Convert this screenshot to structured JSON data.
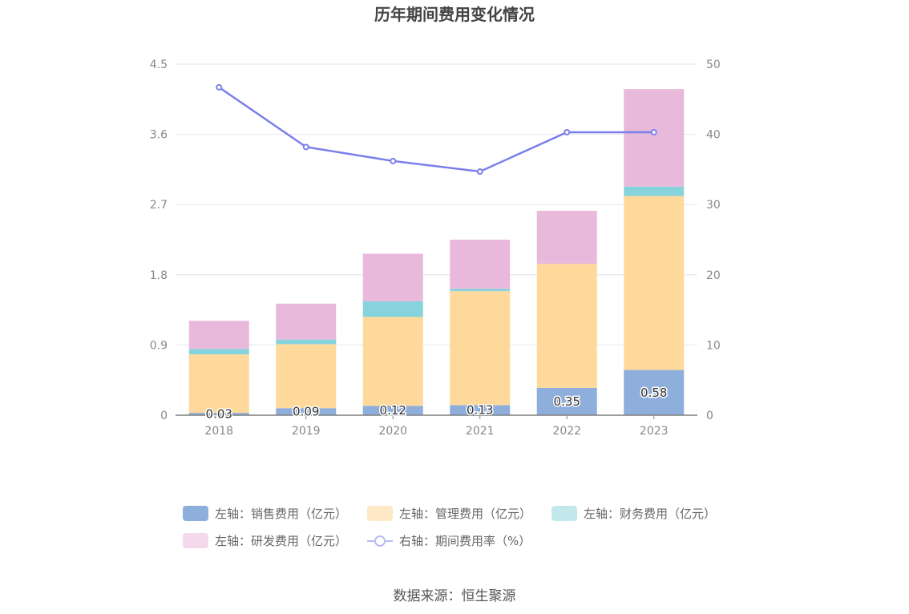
{
  "title": "历年期间费用变化情况",
  "source": "数据来源：恒生聚源",
  "colors": {
    "sales": "#8eaedc",
    "admin": "#ffd99b",
    "finance": "#87d3dc",
    "rnd": "#e8b9da",
    "rate": "#7b7fea",
    "legend_sales": "#8eaedc",
    "legend_admin": "#ffe8c6",
    "legend_finance": "#c3e8ec",
    "legend_rnd": "#f3d9eb",
    "legend_rate": "#b9bcf3"
  },
  "legend": [
    {
      "key": "sales",
      "label": "左轴：销售费用（亿元）"
    },
    {
      "key": "admin",
      "label": "左轴：管理费用（亿元）"
    },
    {
      "key": "finance",
      "label": "左轴：财务费用（亿元）"
    },
    {
      "key": "rnd",
      "label": "左轴：研发费用（亿元）"
    },
    {
      "key": "rate",
      "label": "右轴：期间费用率（%）"
    }
  ],
  "chart_data": {
    "type": "bar",
    "stacked": true,
    "categories": [
      "2018",
      "2019",
      "2020",
      "2021",
      "2022",
      "2023"
    ],
    "series": [
      {
        "name": "左轴：销售费用（亿元）",
        "key": "sales",
        "axis": "left",
        "values": [
          0.03,
          0.09,
          0.12,
          0.13,
          0.35,
          0.58
        ],
        "labels": [
          "0.03",
          "0.09",
          "0.12",
          "0.13",
          "0.35",
          "0.58"
        ]
      },
      {
        "name": "左轴：管理费用（亿元）",
        "key": "admin",
        "axis": "left",
        "values": [
          0.75,
          0.82,
          1.14,
          1.46,
          1.59,
          2.23
        ]
      },
      {
        "name": "左轴：财务费用（亿元）",
        "key": "finance",
        "axis": "left",
        "values": [
          0.07,
          0.06,
          0.2,
          0.03,
          0.0,
          0.12
        ]
      },
      {
        "name": "左轴：研发费用（亿元）",
        "key": "rnd",
        "axis": "left",
        "values": [
          0.36,
          0.46,
          0.61,
          0.63,
          0.68,
          1.25
        ]
      },
      {
        "name": "右轴：期间费用率（%）",
        "key": "rate",
        "axis": "right",
        "type": "line",
        "values": [
          46.7,
          38.2,
          36.2,
          34.7,
          40.3,
          40.3
        ]
      }
    ],
    "y_left": {
      "min": 0,
      "max": 4.5,
      "ticks": [
        "0",
        "0.9",
        "1.8",
        "2.7",
        "3.6",
        "4.5"
      ]
    },
    "y_right": {
      "min": 0,
      "max": 50,
      "ticks": [
        "0",
        "10",
        "20",
        "30",
        "40",
        "50"
      ]
    },
    "grid": true,
    "legend_position": "bottom"
  }
}
